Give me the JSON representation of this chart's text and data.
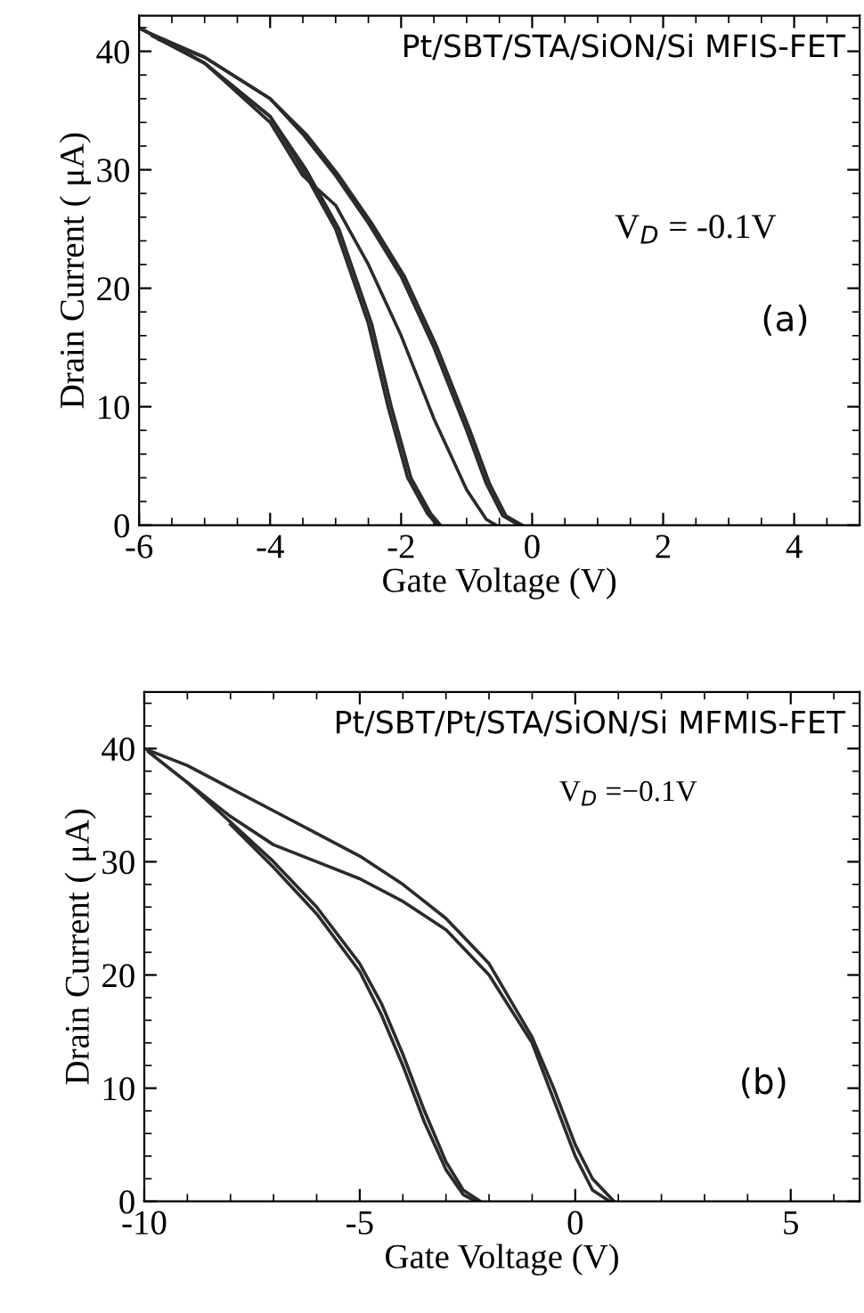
{
  "chart_data": [
    {
      "type": "line",
      "title": "Pt/SBT/STA/SiON/Si MFIS-FET",
      "xlabel": "Gate Voltage (V)",
      "ylabel": "Drain Current ( μA)",
      "annotations": [
        "V$_{D}$ = -0.1V",
        "(a)"
      ],
      "xlim": [
        -6,
        5
      ],
      "ylim": [
        0,
        43
      ],
      "xticks": [
        -6,
        -4,
        -2,
        0,
        2,
        4
      ],
      "yticks": [
        0,
        10,
        20,
        30,
        40
      ],
      "grid": false,
      "legend": false,
      "marker": "none",
      "line_style": "solid",
      "series": [
        {
          "color": "#2b2b2b",
          "x": [
            -6,
            -5,
            -4,
            -3.5,
            -3,
            -2.5,
            -2.2,
            -1.9,
            -1.6,
            -1.45
          ],
          "values": [
            42,
            39,
            34.5,
            30,
            25,
            17,
            10,
            4,
            1,
            0
          ]
        },
        {
          "color": "#2b2b2b",
          "x": [
            -5.8,
            -5,
            -4,
            -3.45,
            -2.95,
            -2.45,
            -2.15,
            -1.85,
            -1.55,
            -1.4
          ],
          "values": [
            41.3,
            39,
            34.5,
            30,
            25,
            17,
            10,
            4,
            1,
            0
          ]
        },
        {
          "color": "#2b2b2b",
          "x": [
            -5.9,
            -5,
            -4,
            -3.5,
            -3,
            -2.5,
            -2,
            -1.5,
            -1,
            -0.7,
            -0.55
          ],
          "values": [
            41.7,
            39,
            34,
            29.5,
            27,
            22,
            16,
            9,
            3,
            0.5,
            0
          ]
        },
        {
          "color": "#2b2b2b",
          "x": [
            -5.95,
            -5,
            -4,
            -3.5,
            -3,
            -2.5,
            -2,
            -1.5,
            -1,
            -0.7,
            -0.45,
            -0.2
          ],
          "values": [
            41.8,
            39.5,
            36,
            33,
            29.5,
            25.5,
            21,
            15,
            8,
            3.5,
            0.8,
            0
          ]
        },
        {
          "color": "#2b2b2b",
          "x": [
            -5.7,
            -5,
            -4,
            -3.45,
            -2.95,
            -2.45,
            -1.95,
            -1.45,
            -0.95,
            -0.65,
            -0.4,
            -0.15
          ],
          "values": [
            41,
            39.5,
            36,
            33,
            29.5,
            25.5,
            21,
            15,
            8,
            3.5,
            0.8,
            0
          ]
        }
      ]
    },
    {
      "type": "line",
      "title": "Pt/SBT/Pt/STA/SiON/Si MFMIS-FET",
      "xlabel": "Gate Voltage (V)",
      "ylabel": "Drain Current ( μA)",
      "annotations": [
        "V$_{D}$ =−0.1V",
        "(b)"
      ],
      "xlim": [
        -10,
        6.6
      ],
      "ylim": [
        0,
        45
      ],
      "xticks": [
        -10,
        -5,
        0,
        5
      ],
      "yticks": [
        0,
        10,
        20,
        30,
        40
      ],
      "grid": false,
      "legend": false,
      "marker": "none",
      "line_style": "solid",
      "series": [
        {
          "color": "#2b2b2b",
          "x": [
            -10,
            -9,
            -8,
            -7,
            -6,
            -5,
            -4,
            -3,
            -2,
            -1,
            -0.5,
            0,
            0.4,
            0.9
          ],
          "values": [
            40,
            38.5,
            36.5,
            34.5,
            32.5,
            30.5,
            28,
            25,
            21,
            14.5,
            10,
            5,
            2,
            0
          ]
        },
        {
          "color": "#2b2b2b",
          "x": [
            -9.9,
            -9,
            -8,
            -7,
            -6,
            -5,
            -4,
            -3,
            -2,
            -1,
            -0.5,
            0,
            0.4,
            0.8
          ],
          "values": [
            39.7,
            37,
            34,
            31.5,
            30,
            28.5,
            26.5,
            24,
            20,
            14,
            9,
            4,
            1,
            0
          ]
        },
        {
          "color": "#2b2b2b",
          "x": [
            -9,
            -8,
            -7,
            -6,
            -5,
            -4.5,
            -4,
            -3.5,
            -3,
            -2.6,
            -2.2
          ],
          "values": [
            37,
            33.5,
            30,
            26,
            21,
            17.5,
            13,
            8,
            3.5,
            1,
            0
          ]
        },
        {
          "color": "#2b2b2b",
          "x": [
            -8,
            -7,
            -6,
            -5,
            -4.5,
            -4,
            -3.5,
            -3,
            -2.6,
            -2.3
          ],
          "values": [
            33.3,
            29.5,
            25.4,
            20.3,
            16.5,
            12,
            7,
            2.8,
            0.6,
            0
          ]
        }
      ]
    }
  ]
}
